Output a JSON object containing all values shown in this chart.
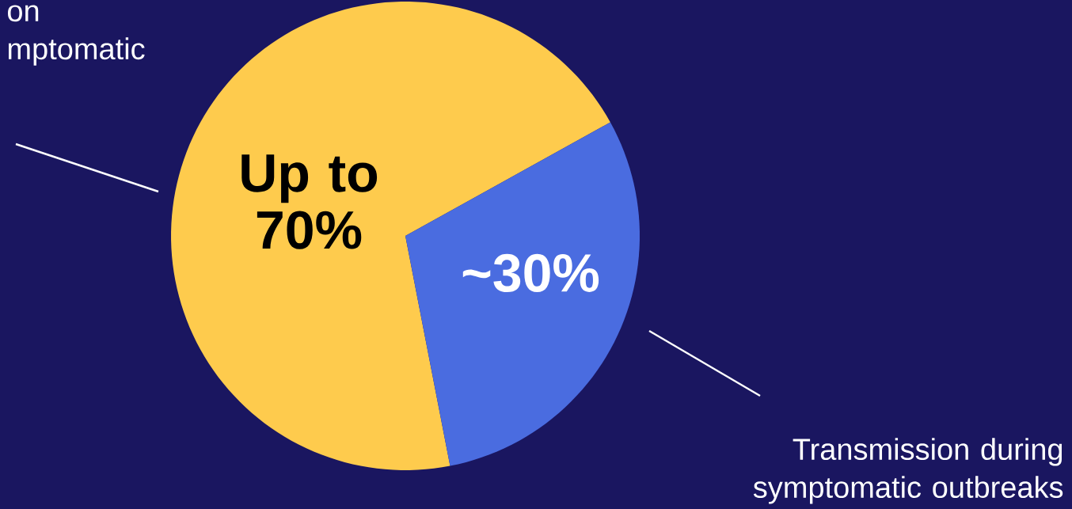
{
  "chart_data": {
    "type": "pie",
    "categories": [
      "on mptomatic",
      "Transmission during symptomatic outbreaks"
    ],
    "values": [
      70,
      30
    ],
    "colors": [
      "#fecb4d",
      "#4a6ce0"
    ],
    "value_labels": [
      "Up to 70%",
      "~30%"
    ]
  }
}
